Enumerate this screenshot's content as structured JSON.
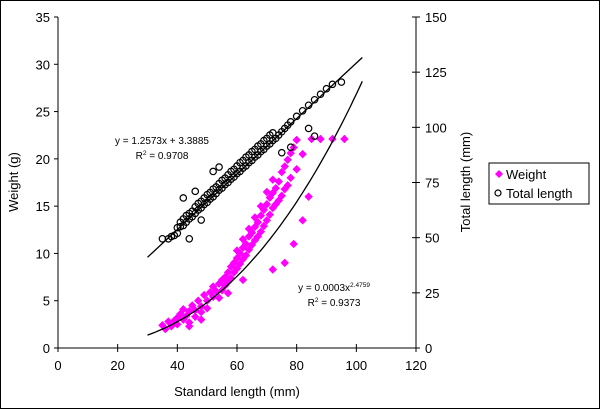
{
  "chart_data": {
    "type": "scatter",
    "title": "",
    "xlabel": "Standard length (mm)",
    "ylabel": "Weight (g)",
    "y2label": "Total length (mm)",
    "xlim": [
      0,
      120
    ],
    "ylim": [
      0,
      35
    ],
    "y2lim": [
      0,
      150
    ],
    "xticks": [
      "0",
      "20",
      "40",
      "60",
      "80",
      "100",
      "120"
    ],
    "yticks": [
      "0",
      "5",
      "10",
      "15",
      "20",
      "25",
      "30",
      "35"
    ],
    "y2ticks": [
      "0",
      "25",
      "50",
      "75",
      "100",
      "125",
      "150"
    ],
    "grid": false,
    "legend_position": "right",
    "legend": [
      {
        "label": "Weight",
        "marker": "diamond",
        "color": "#ff00ff"
      },
      {
        "label": "Total length",
        "marker": "circle-open",
        "color": "#000000"
      }
    ],
    "series": [
      {
        "name": "Weight",
        "axis": "left",
        "color": "#ff00ff",
        "points": [
          [
            35,
            2.4
          ],
          [
            36,
            2.0
          ],
          [
            37,
            2.8
          ],
          [
            38,
            2.3
          ],
          [
            39,
            2.9
          ],
          [
            40,
            3.2
          ],
          [
            40,
            2.5
          ],
          [
            41,
            3.6
          ],
          [
            42,
            3.0
          ],
          [
            42,
            4.1
          ],
          [
            43,
            3.4
          ],
          [
            44,
            3.9
          ],
          [
            44,
            2.7
          ],
          [
            45,
            4.5
          ],
          [
            46,
            4.0
          ],
          [
            46,
            3.3
          ],
          [
            47,
            5.0
          ],
          [
            48,
            4.4
          ],
          [
            48,
            3.8
          ],
          [
            49,
            5.6
          ],
          [
            50,
            5.0
          ],
          [
            50,
            4.2
          ],
          [
            51,
            5.9
          ],
          [
            52,
            5.4
          ],
          [
            52,
            6.5
          ],
          [
            53,
            6.0
          ],
          [
            54,
            6.8
          ],
          [
            54,
            5.3
          ],
          [
            55,
            7.2
          ],
          [
            55,
            6.1
          ],
          [
            56,
            7.5
          ],
          [
            56,
            6.6
          ],
          [
            57,
            8.0
          ],
          [
            57,
            7.0
          ],
          [
            58,
            8.6
          ],
          [
            58,
            7.4
          ],
          [
            59,
            9.0
          ],
          [
            59,
            8.0
          ],
          [
            60,
            9.5
          ],
          [
            60,
            8.4
          ],
          [
            60,
            10.3
          ],
          [
            61,
            10.0
          ],
          [
            61,
            8.9
          ],
          [
            62,
            10.6
          ],
          [
            62,
            9.4
          ],
          [
            62,
            11.5
          ],
          [
            63,
            11.0
          ],
          [
            63,
            9.8
          ],
          [
            64,
            11.8
          ],
          [
            64,
            10.4
          ],
          [
            64,
            12.6
          ],
          [
            65,
            12.2
          ],
          [
            65,
            10.9
          ],
          [
            66,
            12.8
          ],
          [
            66,
            11.4
          ],
          [
            66,
            13.8
          ],
          [
            67,
            13.3
          ],
          [
            67,
            11.8
          ],
          [
            68,
            14.0
          ],
          [
            68,
            12.3
          ],
          [
            68,
            15.0
          ],
          [
            69,
            14.6
          ],
          [
            69,
            12.9
          ],
          [
            70,
            15.2
          ],
          [
            70,
            13.5
          ],
          [
            70,
            16.5
          ],
          [
            71,
            15.9
          ],
          [
            71,
            14.1
          ],
          [
            72,
            16.4
          ],
          [
            72,
            14.8
          ],
          [
            72,
            17.8
          ],
          [
            73,
            16.9
          ],
          [
            73,
            15.2
          ],
          [
            74,
            17.6
          ],
          [
            74,
            15.6
          ],
          [
            75,
            18.6
          ],
          [
            75,
            16.1
          ],
          [
            76,
            19.2
          ],
          [
            76,
            16.8
          ],
          [
            77,
            19.9
          ],
          [
            77,
            17.2
          ],
          [
            78,
            20.6
          ],
          [
            78,
            18.0
          ],
          [
            79,
            21.2
          ],
          [
            80,
            18.9
          ],
          [
            80,
            22.0
          ],
          [
            82,
            20.5
          ],
          [
            84,
            16.0
          ],
          [
            85,
            22.1
          ],
          [
            88,
            22.1
          ],
          [
            92,
            22.1
          ],
          [
            96,
            22.1
          ],
          [
            82,
            13.5
          ],
          [
            79,
            11.0
          ],
          [
            76,
            9.0
          ],
          [
            72,
            8.3
          ],
          [
            62,
            7.2
          ],
          [
            57,
            5.8
          ],
          [
            48,
            3.0
          ],
          [
            44,
            2.3
          ]
        ]
      },
      {
        "name": "Total length",
        "axis": "right",
        "color": "#000000",
        "points": [
          [
            35,
            49.5
          ],
          [
            37,
            49.5
          ],
          [
            38,
            50.5
          ],
          [
            39,
            51.0
          ],
          [
            40,
            52.0
          ],
          [
            40,
            54.5
          ],
          [
            41,
            55.0
          ],
          [
            41,
            57.0
          ],
          [
            42,
            55.5
          ],
          [
            42,
            58.5
          ],
          [
            43,
            57.0
          ],
          [
            43,
            60.0
          ],
          [
            44,
            58.5
          ],
          [
            44,
            61.0
          ],
          [
            45,
            59.5
          ],
          [
            45,
            62.0
          ],
          [
            46,
            61.0
          ],
          [
            46,
            64.0
          ],
          [
            47,
            62.5
          ],
          [
            47,
            65.5
          ],
          [
            48,
            63.5
          ],
          [
            48,
            66.5
          ],
          [
            49,
            65.0
          ],
          [
            49,
            68.0
          ],
          [
            50,
            66.0
          ],
          [
            50,
            69.5
          ],
          [
            51,
            67.5
          ],
          [
            51,
            70.5
          ],
          [
            52,
            68.5
          ],
          [
            52,
            72.0
          ],
          [
            53,
            70.0
          ],
          [
            53,
            73.0
          ],
          [
            54,
            71.5
          ],
          [
            54,
            74.5
          ],
          [
            55,
            72.5
          ],
          [
            55,
            76.0
          ],
          [
            56,
            74.0
          ],
          [
            56,
            77.0
          ],
          [
            57,
            75.0
          ],
          [
            57,
            78.5
          ],
          [
            58,
            76.5
          ],
          [
            58,
            80.0
          ],
          [
            59,
            77.5
          ],
          [
            59,
            81.0
          ],
          [
            60,
            79.0
          ],
          [
            60,
            82.5
          ],
          [
            61,
            80.0
          ],
          [
            61,
            84.0
          ],
          [
            62,
            81.5
          ],
          [
            62,
            85.0
          ],
          [
            63,
            82.5
          ],
          [
            63,
            86.5
          ],
          [
            64,
            84.0
          ],
          [
            64,
            87.5
          ],
          [
            65,
            85.0
          ],
          [
            65,
            89.0
          ],
          [
            66,
            86.5
          ],
          [
            66,
            90.0
          ],
          [
            67,
            87.5
          ],
          [
            67,
            91.5
          ],
          [
            68,
            89.0
          ],
          [
            68,
            92.5
          ],
          [
            69,
            90.0
          ],
          [
            69,
            94.0
          ],
          [
            70,
            91.5
          ],
          [
            70,
            95.0
          ],
          [
            71,
            92.5
          ],
          [
            71,
            96.5
          ],
          [
            72,
            94.0
          ],
          [
            72,
            97.5
          ],
          [
            73,
            95.0
          ],
          [
            74,
            96.5
          ],
          [
            75,
            98.0
          ],
          [
            76,
            99.5
          ],
          [
            77,
            101.0
          ],
          [
            78,
            102.5
          ],
          [
            80,
            105.0
          ],
          [
            82,
            107.5
          ],
          [
            84,
            110.0
          ],
          [
            86,
            112.5
          ],
          [
            88,
            115.0
          ],
          [
            90,
            117.5
          ],
          [
            92,
            119.5
          ],
          [
            95,
            120.5
          ],
          [
            42,
            68.0
          ],
          [
            46,
            71.0
          ],
          [
            44,
            49.5
          ],
          [
            48,
            58.0
          ],
          [
            75,
            88.5
          ],
          [
            78,
            91.0
          ],
          [
            84,
            99.5
          ],
          [
            86,
            96.0
          ],
          [
            52,
            80.0
          ],
          [
            54,
            82.0
          ]
        ]
      }
    ],
    "trendlines": [
      {
        "series": "Total length",
        "type": "linear",
        "slope": 1.2573,
        "intercept": 3.3885,
        "x_range": [
          30,
          102
        ],
        "equation": "y = 1.2573x + 3.3885",
        "r2_label": "R",
        "r2_sup": "2",
        "r2_value": " = 0.9708"
      },
      {
        "series": "Weight",
        "type": "power",
        "coefficient": 0.0003,
        "exponent": 2.4759,
        "x_range": [
          30,
          102
        ],
        "equation_base": "y = 0.0003x",
        "equation_sup": "2.4759",
        "r2_label": "R",
        "r2_sup": "2",
        "r2_value": " = 0.9373"
      }
    ]
  }
}
